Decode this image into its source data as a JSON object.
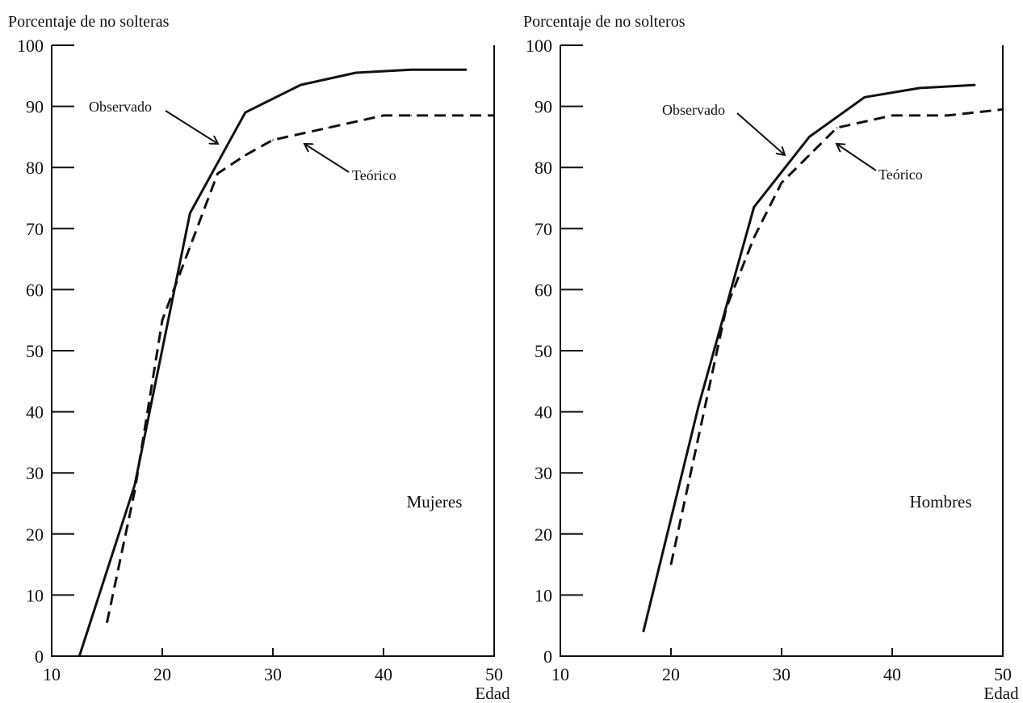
{
  "chart_data": [
    {
      "type": "line",
      "ylabel": "Porcentaje de no solteras",
      "xlabel": "Edad",
      "panel_label": "Mujeres",
      "xlim": [
        10,
        50
      ],
      "ylim": [
        0,
        100
      ],
      "x_ticks": [
        10,
        20,
        30,
        40,
        50
      ],
      "y_ticks": [
        0,
        10,
        20,
        30,
        40,
        50,
        60,
        70,
        80,
        90,
        100
      ],
      "grid": false,
      "annotations": [
        {
          "text": "Observado",
          "series": "Observado"
        },
        {
          "text": "Teórico",
          "series": "Teórico"
        }
      ],
      "series": [
        {
          "name": "Observado",
          "style": "solid",
          "x": [
            12.5,
            17.5,
            22.5,
            27.5,
            32.5,
            37.5,
            42.5,
            47.5
          ],
          "y": [
            0,
            28,
            72.5,
            89,
            93.5,
            95.5,
            96,
            96
          ]
        },
        {
          "name": "Teórico",
          "style": "dashed",
          "x": [
            15,
            17.5,
            20,
            22.5,
            25,
            27.5,
            30,
            32.5,
            35,
            37.5,
            40,
            42.5,
            45,
            50
          ],
          "y": [
            5.5,
            27,
            55,
            67,
            79,
            82,
            84.5,
            85.5,
            86.5,
            87.5,
            88.5,
            88.5,
            88.5,
            88.5
          ]
        }
      ]
    },
    {
      "type": "line",
      "ylabel": "Porcentaje de no solteros",
      "xlabel": "Edad",
      "panel_label": "Hombres",
      "xlim": [
        10,
        50
      ],
      "ylim": [
        0,
        100
      ],
      "x_ticks": [
        10,
        20,
        30,
        40,
        50
      ],
      "y_ticks": [
        0,
        10,
        20,
        30,
        40,
        50,
        60,
        70,
        80,
        90,
        100
      ],
      "grid": false,
      "annotations": [
        {
          "text": "Observado",
          "series": "Observado"
        },
        {
          "text": "Teórico",
          "series": "Teórico"
        }
      ],
      "series": [
        {
          "name": "Observado",
          "style": "solid",
          "x": [
            17.5,
            22.5,
            27.5,
            32.5,
            37.5,
            42.5,
            47.5
          ],
          "y": [
            4,
            41,
            73.5,
            85,
            91.5,
            93,
            93.5
          ]
        },
        {
          "name": "Teórico",
          "style": "dashed",
          "x": [
            20,
            22.5,
            25,
            27.5,
            30,
            32.5,
            35,
            37.5,
            40,
            42.5,
            45,
            50
          ],
          "y": [
            15,
            36,
            57,
            68.5,
            77.5,
            82,
            86.5,
            87.5,
            88.5,
            88.5,
            88.5,
            89.5
          ]
        }
      ]
    }
  ]
}
